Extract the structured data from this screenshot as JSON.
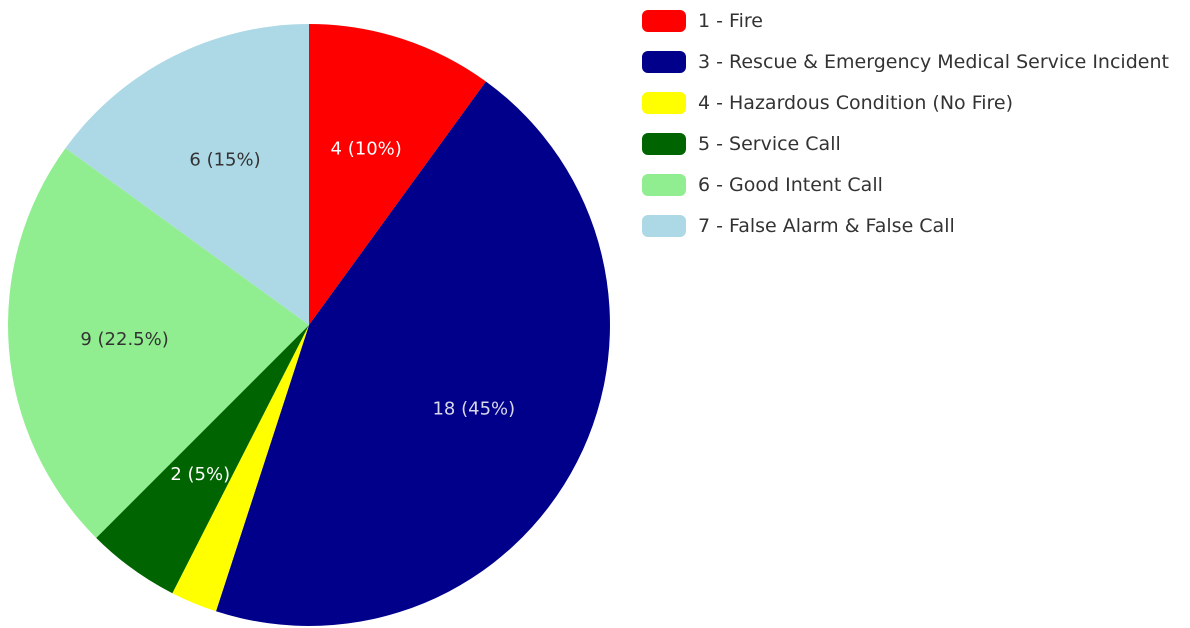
{
  "chart_data": {
    "type": "pie",
    "title": "",
    "legend_position": "top-right",
    "slices": [
      {
        "label": "1 - Fire",
        "value": 4,
        "percent": "10%",
        "data_label": "4 (10%)",
        "color": "#ff0000",
        "label_color": "#ffffff"
      },
      {
        "label": "3 - Rescue & Emergency Medical Service Incident",
        "value": 18,
        "percent": "45%",
        "data_label": "18 (45%)",
        "color": "#00008b",
        "label_color": "#d8d8e8"
      },
      {
        "label": "4 - Hazardous Condition (No Fire)",
        "value": 1,
        "percent": "2.5%",
        "data_label": "",
        "color": "#ffff00",
        "label_color": "#333333"
      },
      {
        "label": "5 - Service Call",
        "value": 2,
        "percent": "5%",
        "data_label": "2 (5%)",
        "color": "#006400",
        "label_color": "#ffffff"
      },
      {
        "label": "6 - Good Intent Call",
        "value": 9,
        "percent": "22.5%",
        "data_label": "9 (22.5%)",
        "color": "#90ee90",
        "label_color": "#333333"
      },
      {
        "label": "7 - False Alarm & False Call",
        "value": 6,
        "percent": "15%",
        "data_label": "6 (15%)",
        "color": "#add8e6",
        "label_color": "#333333"
      }
    ]
  }
}
